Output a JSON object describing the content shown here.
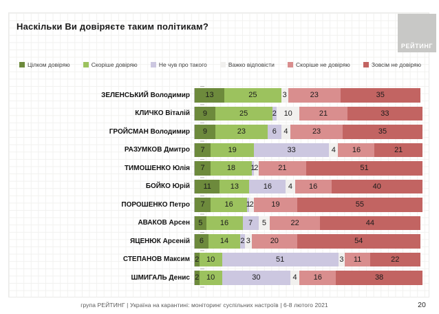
{
  "header": {
    "title": "Наскільки Ви довіряєте таким політикам?",
    "logo_text": "РЕЙТИНГ"
  },
  "footer": {
    "text": "група РЕЙТИНГ | Україна на карантині: моніторинг суспільних настроїв | 6-8 лютого 2021",
    "page_number": "20"
  },
  "chart_data": {
    "type": "bar",
    "orientation": "horizontal",
    "stacked": true,
    "values_unit": "percent",
    "xlim": [
      0,
      100
    ],
    "grid": false,
    "legend_position": "top",
    "title": "Наскільки Ви довіряєте таким політикам?",
    "legend": [
      {
        "label": "Цілком довіряю",
        "color": "#6d8a3c"
      },
      {
        "label": "Скоріше довіряю",
        "color": "#9cc25e"
      },
      {
        "label": "Не чув про такого",
        "color": "#ccc7e0"
      },
      {
        "label": "Важко відповісти",
        "color": "#f1f0ee"
      },
      {
        "label": "Скоріше не довіряю",
        "color": "#d98e8e"
      },
      {
        "label": "Зовсім не довіряю",
        "color": "#c26462"
      }
    ],
    "rows": [
      {
        "label": "ЗЕЛЕНСЬКИЙ Володимир",
        "values": [
          13,
          25,
          null,
          3,
          23,
          35
        ]
      },
      {
        "label": "КЛИЧКО Віталій",
        "values": [
          9,
          25,
          2,
          10,
          21,
          33
        ]
      },
      {
        "label": "ГРОЙСМАН Володимир",
        "values": [
          9,
          23,
          6,
          4,
          23,
          35
        ]
      },
      {
        "label": "РАЗУМКОВ Дмитро",
        "values": [
          7,
          19,
          33,
          4,
          16,
          21
        ]
      },
      {
        "label": "ТИМОШЕНКО Юлія",
        "values": [
          7,
          18,
          1,
          2,
          21,
          51
        ]
      },
      {
        "label": "БОЙКО Юрій",
        "values": [
          11,
          13,
          16,
          4,
          16,
          40
        ]
      },
      {
        "label": "ПОРОШЕНКО Петро",
        "values": [
          7,
          16,
          1,
          2,
          19,
          55
        ]
      },
      {
        "label": "АВАКОВ Арсен",
        "values": [
          5,
          16,
          7,
          5,
          22,
          44
        ]
      },
      {
        "label": "ЯЦЕНЮК Арсеній",
        "values": [
          6,
          14,
          2,
          3,
          20,
          54
        ]
      },
      {
        "label": "СТЕПАНОВ Максим",
        "values": [
          2,
          10,
          51,
          3,
          11,
          22
        ]
      },
      {
        "label": "ШМИГАЛЬ Денис",
        "values": [
          2,
          10,
          30,
          4,
          16,
          38
        ]
      }
    ]
  }
}
